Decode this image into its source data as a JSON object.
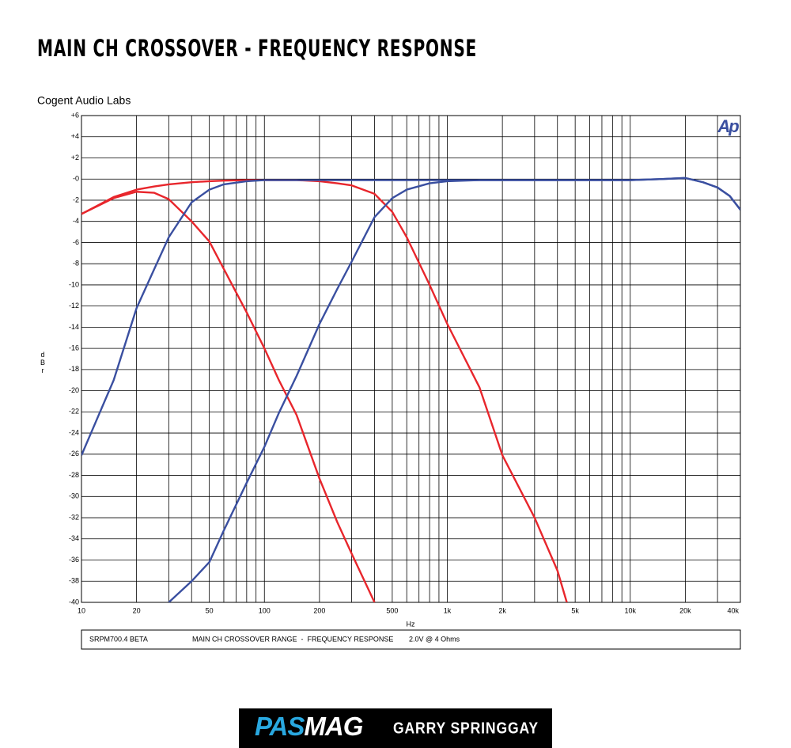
{
  "chart_data": {
    "type": "line",
    "title": "MAIN CH CROSSOVER - FREQUENCY RESPONSE",
    "subtitle": "Cogent Audio Labs",
    "logo": "Ap",
    "xlabel": "Hz",
    "ylabel": "dBr",
    "xscale": "log",
    "grid": true,
    "xlim": [
      10,
      40000
    ],
    "ylim": [
      -40,
      6
    ],
    "xticks": [
      10,
      20,
      50,
      100,
      200,
      500,
      {
        "value": 1000,
        "label": "1k"
      },
      {
        "value": 2000,
        "label": "2k"
      },
      {
        "value": 5000,
        "label": "5k"
      },
      {
        "value": 10000,
        "label": "10k"
      },
      {
        "value": 20000,
        "label": "20k"
      },
      {
        "value": 40000,
        "label": "40k"
      }
    ],
    "xgrid": [
      10,
      20,
      30,
      40,
      50,
      60,
      70,
      80,
      90,
      100,
      200,
      300,
      400,
      500,
      600,
      700,
      800,
      900,
      1000,
      2000,
      3000,
      4000,
      5000,
      6000,
      7000,
      8000,
      9000,
      10000,
      20000,
      30000,
      40000
    ],
    "yticks": [
      {
        "value": 6,
        "label": "+6"
      },
      {
        "value": 4,
        "label": "+4"
      },
      {
        "value": 2,
        "label": "+2"
      },
      {
        "value": 0,
        "label": "-0"
      },
      -2,
      -4,
      -6,
      -8,
      -10,
      -12,
      -14,
      -16,
      -18,
      -20,
      -22,
      -24,
      -26,
      -28,
      -30,
      -32,
      -34,
      -36,
      -38,
      -40
    ],
    "x": [
      10,
      15,
      20,
      25,
      30,
      40,
      50,
      60,
      80,
      100,
      120,
      150,
      200,
      250,
      300,
      400,
      500,
      600,
      800,
      1000,
      1500,
      2000,
      3000,
      4000,
      4500,
      5000,
      7000,
      10000,
      15000,
      20000,
      25000,
      30000,
      35000,
      40000
    ],
    "series": [
      {
        "color": "#e8262c",
        "values": [
          -3.3,
          -1.8,
          -1.2,
          -1.3,
          -1.9,
          -4.0,
          -5.9,
          -8.5,
          -12.6,
          -16,
          -19,
          -22.3,
          -28.3,
          -32.4,
          -35.4,
          -40,
          null,
          null,
          null,
          null,
          null,
          null,
          null,
          null,
          null,
          null,
          null,
          null,
          null,
          null,
          null,
          null,
          null,
          null
        ]
      },
      {
        "color": "#e8262c",
        "values": [
          -3.3,
          -1.7,
          -1.0,
          -0.7,
          -0.5,
          -0.3,
          -0.2,
          -0.15,
          -0.1,
          -0.1,
          -0.1,
          -0.1,
          -0.2,
          -0.4,
          -0.6,
          -1.4,
          -3.1,
          -5.5,
          -10,
          -13.7,
          -19.7,
          -26.1,
          -32,
          -37,
          -40,
          null,
          null,
          null,
          null,
          null,
          null,
          null,
          null,
          null
        ]
      },
      {
        "color": "#3a4fa0",
        "values": [
          -26.1,
          -19,
          -12.2,
          -8.5,
          -5.5,
          -2.2,
          -1.0,
          -0.5,
          -0.2,
          -0.1,
          -0.1,
          -0.1,
          -0.1,
          -0.1,
          -0.1,
          -0.1,
          -0.1,
          -0.1,
          -0.1,
          -0.1,
          -0.1,
          -0.1,
          -0.1,
          -0.1,
          -0.1,
          -0.1,
          -0.1,
          -0.1,
          0,
          0.1,
          -0.3,
          -0.8,
          -1.6,
          -2.9
        ]
      },
      {
        "color": "#3a4fa0",
        "values": [
          null,
          null,
          null,
          null,
          -40,
          -38,
          -36.2,
          -33.2,
          -28.7,
          -25.3,
          -22.1,
          -18.6,
          -13.7,
          -10.4,
          -7.8,
          -3.6,
          -1.8,
          -1.0,
          -0.4,
          -0.2,
          -0.1,
          -0.1,
          -0.1,
          -0.1,
          -0.1,
          -0.1,
          -0.1,
          -0.1,
          0,
          0.1,
          -0.3,
          -0.8,
          -1.6,
          -2.9
        ]
      }
    ],
    "footnotes": [
      "SRPM700.4 BETA",
      "MAIN CH CROSSOVER RANGE  -  FREQUENCY RESPONSE",
      "2.0V @ 4 Ohms"
    ]
  },
  "banner": {
    "logo_parts": [
      "PAS",
      "MAG"
    ],
    "author": "GARRY SPRINGGAY"
  }
}
